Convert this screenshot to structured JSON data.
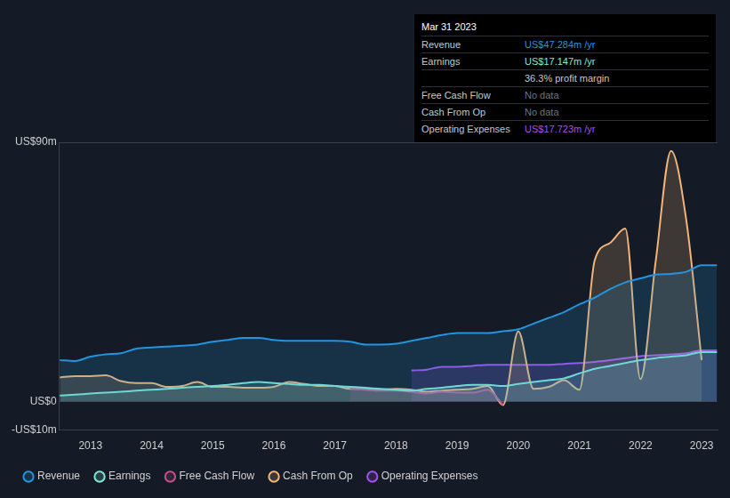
{
  "chart_data": {
    "type": "area",
    "x": [
      2012.5,
      2012.75,
      2013,
      2013.25,
      2013.5,
      2013.75,
      2014,
      2014.25,
      2014.5,
      2014.75,
      2015,
      2015.25,
      2015.5,
      2015.75,
      2016,
      2016.25,
      2016.5,
      2016.75,
      2017,
      2017.25,
      2017.5,
      2017.75,
      2018,
      2018.25,
      2018.5,
      2018.75,
      2019,
      2019.25,
      2019.5,
      2019.75,
      2020,
      2020.25,
      2020.5,
      2020.75,
      2021,
      2021.25,
      2021.5,
      2021.75,
      2022,
      2022.25,
      2022.5,
      2022.75,
      2023,
      2023.25
    ],
    "series": [
      {
        "name": "Revenue",
        "color": "#2394df",
        "values": [
          14.3,
          14,
          15.5,
          16.3,
          16.7,
          18.3,
          18.7,
          19,
          19.3,
          19.7,
          20.7,
          21.3,
          22,
          22,
          21.3,
          21,
          21,
          21,
          21,
          20.7,
          19.7,
          19.7,
          20,
          21,
          22,
          23,
          23.7,
          23.7,
          23.7,
          24.3,
          25,
          27,
          29,
          31,
          33.7,
          36,
          39,
          41.3,
          42.7,
          44,
          44.3,
          45,
          47.3,
          47.3
        ]
      },
      {
        "name": "Earnings",
        "color": "#7fe8d6",
        "values": [
          2,
          2.3,
          2.7,
          3,
          3.3,
          3.7,
          4,
          4.3,
          4.7,
          5,
          5.3,
          5.7,
          6.3,
          6.7,
          6.3,
          6,
          5.7,
          5.7,
          5.3,
          5,
          4.7,
          4.3,
          4,
          3.7,
          4.3,
          4.7,
          5.3,
          5.7,
          5.7,
          5.3,
          6,
          6.7,
          7.3,
          8,
          9.7,
          11.3,
          12.3,
          13.3,
          14.3,
          15,
          15.5,
          16,
          17.1,
          17.1
        ]
      },
      {
        "name": "Free Cash Flow",
        "color": "#c4508b",
        "values": [
          null,
          null,
          null,
          null,
          null,
          null,
          null,
          null,
          null,
          null,
          null,
          null,
          null,
          null,
          null,
          null,
          null,
          null,
          null,
          4.3,
          4,
          3.7,
          3.7,
          3.3,
          2.7,
          3.3,
          3,
          3,
          4,
          -1.3,
          null,
          null,
          null,
          null,
          null,
          null,
          null,
          null,
          null,
          null,
          null,
          null,
          null,
          null
        ]
      },
      {
        "name": "Cash From Op",
        "color": "#f2b579",
        "values": [
          8.3,
          8.7,
          8.7,
          9,
          7,
          6.3,
          6.3,
          5,
          5.3,
          6.7,
          5,
          5,
          4.7,
          4.7,
          5,
          6.7,
          6,
          5.3,
          5.3,
          4.3,
          4.3,
          4,
          4.3,
          4,
          3.3,
          3.7,
          4,
          4.3,
          5.3,
          -1.3,
          24.3,
          4.3,
          5,
          7.3,
          4,
          49,
          55,
          60,
          7.7,
          49,
          87,
          62.7,
          14.3,
          null
        ]
      },
      {
        "name": "Operating Expenses",
        "color": "#a64ff0",
        "values": [
          null,
          null,
          null,
          null,
          null,
          null,
          null,
          null,
          null,
          null,
          null,
          null,
          null,
          null,
          null,
          null,
          null,
          null,
          null,
          null,
          null,
          null,
          null,
          10.7,
          11,
          12,
          12,
          12.3,
          12.7,
          12.7,
          12.7,
          12.7,
          12.7,
          13,
          13.3,
          13.7,
          14.3,
          15,
          15.7,
          16,
          16.3,
          16.7,
          17.7,
          17.7
        ]
      }
    ],
    "xlim": [
      2012.49,
      2023.26
    ],
    "xticks": [
      2013,
      2014,
      2015,
      2016,
      2017,
      2018,
      2019,
      2020,
      2021,
      2022,
      2023
    ],
    "ylim": [
      -10,
      90
    ],
    "yticks": [
      {
        "value": -10,
        "label": "-US$10m"
      },
      {
        "value": 0,
        "label": "US$0"
      },
      {
        "value": 90,
        "label": "US$90m"
      }
    ],
    "grid": true,
    "legend": "bottom"
  },
  "info_box": {
    "title": "Mar 31 2023",
    "rows": [
      {
        "label": "Revenue",
        "value": "US$47.284m /yr",
        "color": "#2394df"
      },
      {
        "label": "Earnings",
        "value": "US$17.147m /yr",
        "color": "#7fe8d6"
      },
      {
        "value": "36.3% profit margin",
        "color": "#c8c8c8"
      },
      {
        "label": "Free Cash Flow",
        "value": "No data",
        "color": "#6f7580"
      },
      {
        "label": "Cash From Op",
        "value": "No data",
        "color": "#6f7580"
      },
      {
        "label": "Operating Expenses",
        "value": "US$17.723m /yr",
        "color": "#a64ff0"
      }
    ]
  }
}
